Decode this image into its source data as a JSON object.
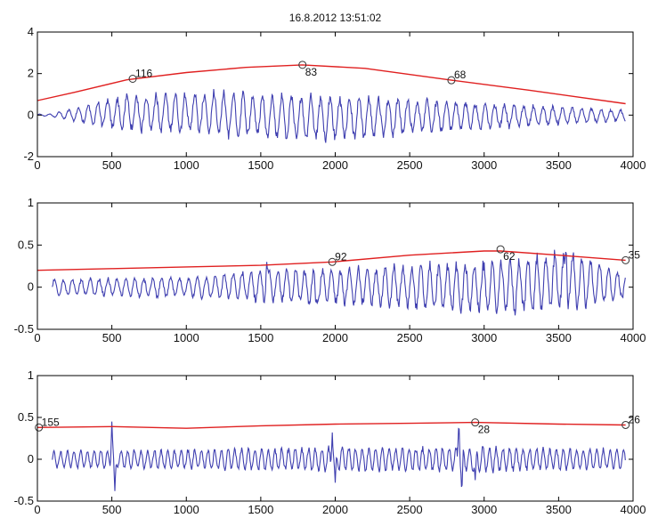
{
  "chart_data": [
    {
      "type": "line",
      "title": "16.8.2012 13:51:02",
      "xlabel": "",
      "ylabel": "",
      "xlim": [
        0,
        4000
      ],
      "ylim": [
        -2,
        4
      ],
      "xticks": [
        "0",
        "500",
        "1000",
        "1500",
        "2000",
        "2500",
        "3000",
        "3500",
        "4000"
      ],
      "yticks": [
        "-2",
        "0",
        "2",
        "4"
      ],
      "series": [
        {
          "color": "#3f3fb0",
          "style": "signal",
          "x_range": [
            0,
            3950
          ],
          "oscillation_period": 65,
          "envelope_peak": [
            [
              80,
              0.05
            ],
            [
              300,
              0.45
            ],
            [
              600,
              1.0
            ],
            [
              1000,
              1.15
            ],
            [
              1800,
              1.0
            ],
            [
              2500,
              0.8
            ],
            [
              3200,
              0.55
            ],
            [
              3900,
              0.25
            ]
          ],
          "envelope_trough": [
            [
              80,
              -0.05
            ],
            [
              300,
              -0.4
            ],
            [
              600,
              -0.8
            ],
            [
              1000,
              -0.9
            ],
            [
              1900,
              -1.3
            ],
            [
              2500,
              -0.9
            ],
            [
              3200,
              -0.6
            ],
            [
              3900,
              -0.3
            ]
          ]
        },
        {
          "color": "#e02020",
          "style": "envelope",
          "x": [
            0,
            250,
            600,
            1000,
            1400,
            1780,
            2200,
            2780,
            3300,
            3950
          ],
          "values": [
            0.7,
            1.1,
            1.7,
            2.05,
            2.3,
            2.42,
            2.25,
            1.68,
            1.2,
            0.55
          ]
        }
      ],
      "markers": [
        {
          "x": 640,
          "y": 1.75,
          "label": "116"
        },
        {
          "x": 1780,
          "y": 2.42,
          "label": "83"
        },
        {
          "x": 2780,
          "y": 1.68,
          "label": "68"
        }
      ]
    },
    {
      "type": "line",
      "title": "",
      "xlabel": "",
      "ylabel": "",
      "xlim": [
        0,
        4000
      ],
      "ylim": [
        -0.5,
        1
      ],
      "xticks": [
        "0",
        "500",
        "1000",
        "1500",
        "2000",
        "2500",
        "3000",
        "3500",
        "4000"
      ],
      "yticks": [
        "-0.5",
        "0",
        "0.5",
        "1"
      ],
      "series": [
        {
          "color": "#3f3fb0",
          "style": "signal",
          "x_range": [
            100,
            3950
          ],
          "oscillation_period": 60,
          "envelope_peak": [
            [
              100,
              0.1
            ],
            [
              1000,
              0.12
            ],
            [
              1550,
              0.22
            ],
            [
              2000,
              0.22
            ],
            [
              2600,
              0.28
            ],
            [
              3100,
              0.3
            ],
            [
              3550,
              0.45
            ],
            [
              3950,
              0.18
            ]
          ],
          "envelope_trough": [
            [
              100,
              -0.1
            ],
            [
              1000,
              -0.12
            ],
            [
              1550,
              -0.18
            ],
            [
              2000,
              -0.2
            ],
            [
              2600,
              -0.28
            ],
            [
              3100,
              -0.32
            ],
            [
              3550,
              -0.3
            ],
            [
              3950,
              -0.15
            ]
          ],
          "spikes": [
            [
              1540,
              0.3
            ],
            [
              1870,
              -0.22
            ],
            [
              3550,
              0.5
            ]
          ]
        },
        {
          "color": "#e02020",
          "style": "envelope",
          "x": [
            0,
            500,
            1000,
            1500,
            1980,
            2500,
            3000,
            3110,
            3500,
            3950
          ],
          "values": [
            0.2,
            0.22,
            0.24,
            0.26,
            0.3,
            0.38,
            0.43,
            0.43,
            0.38,
            0.32
          ]
        }
      ],
      "markers": [
        {
          "x": 1980,
          "y": 0.3,
          "label": "92"
        },
        {
          "x": 3110,
          "y": 0.45,
          "label": "62"
        },
        {
          "x": 3950,
          "y": 0.32,
          "label": "35"
        }
      ]
    },
    {
      "type": "line",
      "title": "",
      "xlabel": "",
      "ylabel": "",
      "xlim": [
        0,
        4000
      ],
      "ylim": [
        -0.5,
        1
      ],
      "xticks": [
        "0",
        "500",
        "1000",
        "1500",
        "2000",
        "2500",
        "3000",
        "3500",
        "4000"
      ],
      "yticks": [
        "-0.5",
        "0",
        "0.5",
        "1"
      ],
      "series": [
        {
          "color": "#3f3fb0",
          "style": "signal",
          "x_range": [
            100,
            3950
          ],
          "oscillation_period": 45,
          "envelope_peak": [
            [
              100,
              0.1
            ],
            [
              1000,
              0.12
            ],
            [
              2000,
              0.15
            ],
            [
              3000,
              0.15
            ],
            [
              3950,
              0.12
            ]
          ],
          "envelope_trough": [
            [
              100,
              -0.1
            ],
            [
              1000,
              -0.12
            ],
            [
              2000,
              -0.15
            ],
            [
              3000,
              -0.15
            ],
            [
              3950,
              -0.12
            ]
          ],
          "spikes": [
            [
              500,
              0.45
            ],
            [
              520,
              -0.38
            ],
            [
              1980,
              0.32
            ],
            [
              2000,
              -0.28
            ],
            [
              2830,
              0.48
            ],
            [
              2850,
              -0.42
            ],
            [
              2940,
              -0.25
            ]
          ]
        },
        {
          "color": "#e02020",
          "style": "envelope",
          "x": [
            0,
            500,
            1000,
            1500,
            2000,
            2500,
            2940,
            3500,
            3950
          ],
          "values": [
            0.38,
            0.39,
            0.37,
            0.4,
            0.42,
            0.43,
            0.44,
            0.42,
            0.41
          ]
        }
      ],
      "markers": [
        {
          "x": 10,
          "y": 0.38,
          "label": "155"
        },
        {
          "x": 2940,
          "y": 0.44,
          "label": "28"
        },
        {
          "x": 3950,
          "y": 0.41,
          "label": "26"
        }
      ]
    }
  ]
}
